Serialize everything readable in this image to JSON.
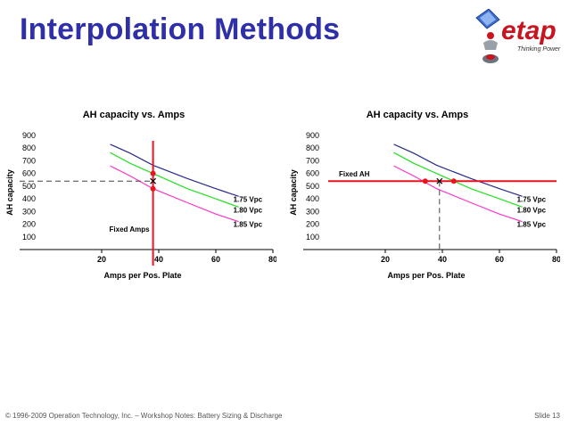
{
  "slide": {
    "title": "Interpolation Methods",
    "footer": "© 1996-2009 Operation Technology, Inc. – Workshop Notes: Battery Sizing & Discharge",
    "slide_number": "Slide 13"
  },
  "logo": {
    "text": "etap",
    "tagline": "Thinking Power"
  },
  "colors": {
    "title": "#2f2fa8",
    "marker": "#e8141e",
    "s175": "#2a2a8c",
    "s180": "#22e022",
    "s185": "#ff33cc"
  },
  "chart_data": [
    {
      "type": "line",
      "title": "AH capacity vs. Amps",
      "xlabel": "Amps per Pos. Plate",
      "ylabel": "AH capacity",
      "xlim": [
        0,
        80
      ],
      "ylim": [
        0,
        900
      ],
      "xticks": [
        20,
        40,
        60,
        80
      ],
      "yticks": [
        100,
        200,
        300,
        400,
        500,
        600,
        700,
        800,
        900
      ],
      "grid": false,
      "series": [
        {
          "name": "1.75 Vpc",
          "color": "#2a2a8c",
          "x": [
            23,
            30,
            38,
            50,
            60,
            68
          ],
          "y": [
            830,
            760,
            665,
            560,
            480,
            420
          ]
        },
        {
          "name": "1.80 Vpc",
          "color": "#22e022",
          "x": [
            23,
            30,
            38,
            50,
            60,
            68
          ],
          "y": [
            765,
            680,
            600,
            480,
            400,
            335
          ]
        },
        {
          "name": "1.85 Vpc",
          "color": "#ff33cc",
          "x": [
            23,
            30,
            38,
            50,
            60,
            68
          ],
          "y": [
            660,
            580,
            480,
            370,
            280,
            220
          ]
        }
      ],
      "reference": {
        "orientation": "vertical",
        "value": 38,
        "label": "Fixed Amps"
      },
      "dashed_guide": {
        "axis": "y",
        "value": 540
      },
      "markers": [
        {
          "x": 38,
          "y": 600
        },
        {
          "x": 38,
          "y": 480
        }
      ],
      "cross": {
        "x": 38,
        "y": 540
      }
    },
    {
      "type": "line",
      "title": "AH capacity vs. Amps",
      "xlabel": "Amps per Pos. Plate",
      "ylabel": "AH capacity",
      "xlim": [
        0,
        80
      ],
      "ylim": [
        0,
        900
      ],
      "xticks": [
        20,
        40,
        60,
        80
      ],
      "yticks": [
        100,
        200,
        300,
        400,
        500,
        600,
        700,
        800,
        900
      ],
      "grid": false,
      "series": [
        {
          "name": "1.75 Vpc",
          "color": "#2a2a8c",
          "x": [
            23,
            30,
            38,
            50,
            60,
            68
          ],
          "y": [
            830,
            760,
            665,
            560,
            480,
            420
          ]
        },
        {
          "name": "1.80 Vpc",
          "color": "#22e022",
          "x": [
            23,
            30,
            38,
            50,
            60,
            68
          ],
          "y": [
            765,
            680,
            600,
            480,
            400,
            335
          ]
        },
        {
          "name": "1.85 Vpc",
          "color": "#ff33cc",
          "x": [
            23,
            30,
            38,
            50,
            60,
            68
          ],
          "y": [
            660,
            580,
            480,
            370,
            280,
            220
          ]
        }
      ],
      "reference": {
        "orientation": "horizontal",
        "value": 540,
        "label": "Fixed AH"
      },
      "dashed_guide": {
        "axis": "x",
        "value": 39
      },
      "markers": [
        {
          "x": 34,
          "y": 540
        },
        {
          "x": 44,
          "y": 540
        }
      ],
      "cross": {
        "x": 39,
        "y": 540
      }
    }
  ]
}
